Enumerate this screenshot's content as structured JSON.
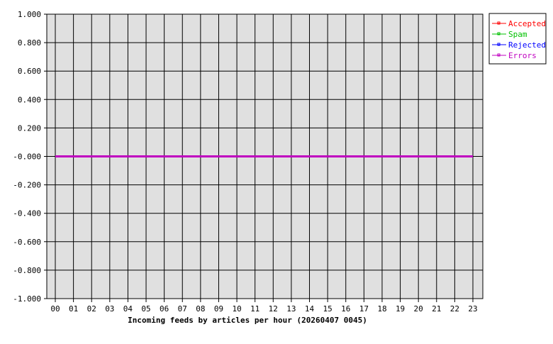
{
  "chart_data": {
    "type": "line",
    "title": "",
    "xlabel": "Incoming feeds by articles per hour (20260407 0045)",
    "ylabel": "",
    "categories": [
      "00",
      "01",
      "02",
      "03",
      "04",
      "05",
      "06",
      "07",
      "08",
      "09",
      "10",
      "11",
      "12",
      "13",
      "14",
      "15",
      "16",
      "17",
      "18",
      "19",
      "20",
      "21",
      "22",
      "23"
    ],
    "ylim": [
      -1,
      1
    ],
    "yticks": [
      "1.000",
      "0.800",
      "0.600",
      "0.400",
      "0.200",
      "-0.000",
      "-0.200",
      "-0.400",
      "-0.600",
      "-0.800",
      "-1.000"
    ],
    "grid": true,
    "legend": "top-right",
    "series": [
      {
        "name": "Accepted",
        "color": "#ff0000",
        "values": [
          0,
          0,
          0,
          0,
          0,
          0,
          0,
          0,
          0,
          0,
          0,
          0,
          0,
          0,
          0,
          0,
          0,
          0,
          0,
          0,
          0,
          0,
          0,
          0
        ]
      },
      {
        "name": "Spam",
        "color": "#00c000",
        "values": [
          0,
          0,
          0,
          0,
          0,
          0,
          0,
          0,
          0,
          0,
          0,
          0,
          0,
          0,
          0,
          0,
          0,
          0,
          0,
          0,
          0,
          0,
          0,
          0
        ]
      },
      {
        "name": "Rejected",
        "color": "#0000ff",
        "values": [
          0,
          0,
          0,
          0,
          0,
          0,
          0,
          0,
          0,
          0,
          0,
          0,
          0,
          0,
          0,
          0,
          0,
          0,
          0,
          0,
          0,
          0,
          0,
          0
        ]
      },
      {
        "name": "Errors",
        "color": "#c000c0",
        "values": [
          0,
          0,
          0,
          0,
          0,
          0,
          0,
          0,
          0,
          0,
          0,
          0,
          0,
          0,
          0,
          0,
          0,
          0,
          0,
          0,
          0,
          0,
          0,
          0
        ]
      }
    ],
    "plot_background": "#e0e0e0"
  }
}
